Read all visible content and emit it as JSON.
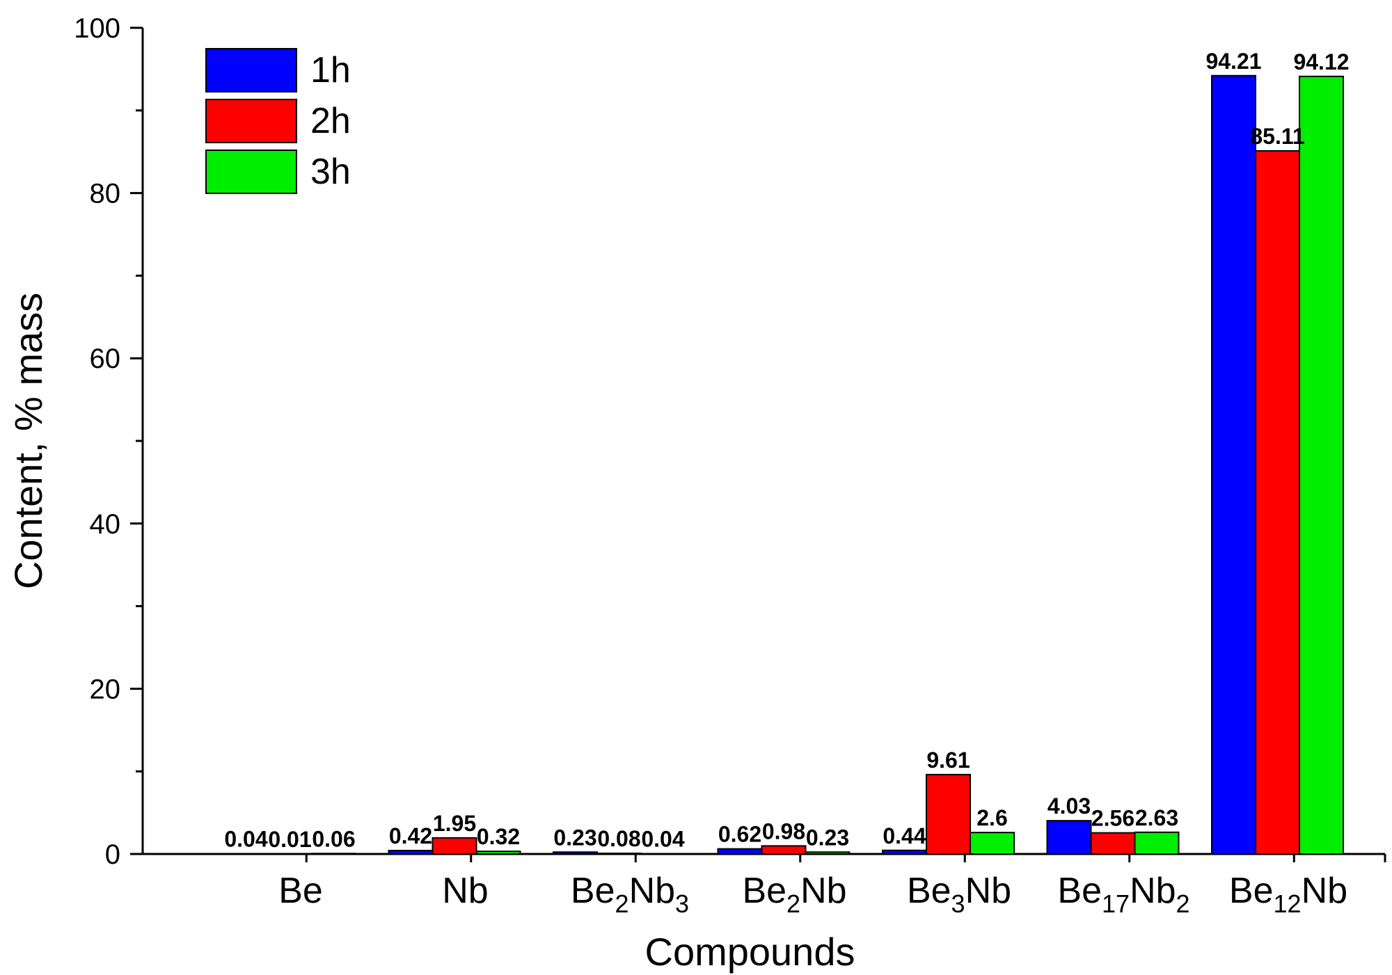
{
  "chart_data": {
    "type": "bar",
    "xlabel": "Compounds",
    "ylabel": "Content, % mass",
    "ylim": [
      0,
      100
    ],
    "yticks": [
      "0",
      "20",
      "40",
      "60",
      "80",
      "100"
    ],
    "categories": [
      {
        "label": "Be",
        "base": "Be",
        "sub1": "",
        "mid": "",
        "sub2": ""
      },
      {
        "label": "Nb",
        "base": "Nb",
        "sub1": "",
        "mid": "",
        "sub2": ""
      },
      {
        "label": "Be2Nb3",
        "base": "Be",
        "sub1": "2",
        "mid": "Nb",
        "sub2": "3"
      },
      {
        "label": "Be2Nb",
        "base": "Be",
        "sub1": "2",
        "mid": "Nb",
        "sub2": ""
      },
      {
        "label": "Be3Nb",
        "base": "Be",
        "sub1": "3",
        "mid": "Nb",
        "sub2": ""
      },
      {
        "label": "Be17Nb2",
        "base": "Be",
        "sub1": "17",
        "mid": "Nb",
        "sub2": "2"
      },
      {
        "label": "Be12Nb",
        "base": "Be",
        "sub1": "12",
        "mid": "Nb",
        "sub2": ""
      }
    ],
    "series": [
      {
        "name": "1h",
        "color": "#0000ff",
        "values": [
          0.04,
          0.42,
          0.23,
          0.62,
          0.44,
          4.03,
          94.21
        ],
        "labels": [
          "0.04",
          "0.42",
          "0.23",
          "0.62",
          "0.44",
          "4.03",
          "94.21"
        ]
      },
      {
        "name": "2h",
        "color": "#ff0000",
        "values": [
          0.01,
          1.95,
          0.08,
          0.98,
          9.61,
          2.56,
          85.11
        ],
        "labels": [
          "0.01",
          "1.95",
          "0.08",
          "0.98",
          "9.61",
          "2.56",
          "85.11"
        ]
      },
      {
        "name": "3h",
        "color": "#00ee00",
        "values": [
          0.06,
          0.32,
          0.04,
          0.23,
          2.6,
          2.63,
          94.12
        ],
        "labels": [
          "0.06",
          "0.32",
          "0.04",
          "0.23",
          "2.6",
          "2.63",
          "94.12"
        ]
      }
    ],
    "legend_position": "top-left",
    "grid": false
  }
}
